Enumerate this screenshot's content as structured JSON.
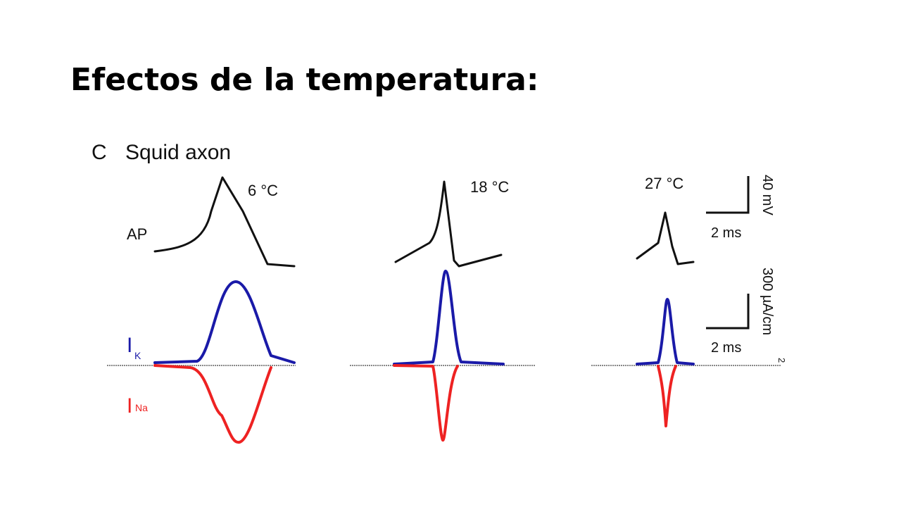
{
  "title": "Efectos de la temperatura:",
  "figure": {
    "panel": "C",
    "heading": "Squid axon",
    "temperatures": [
      "6 °C",
      "18 °C",
      "27 °C"
    ],
    "row_labels": {
      "ap": "AP",
      "ik": {
        "symbol": "I",
        "subscript": "K"
      },
      "ina": {
        "symbol": "I",
        "subscript": "Na"
      }
    },
    "scale_bars": [
      {
        "vertical": "40 mV",
        "horizontal": "2 ms"
      },
      {
        "vertical": "300 µA/cm",
        "superscript": "2",
        "horizontal": "2 ms"
      }
    ]
  }
}
